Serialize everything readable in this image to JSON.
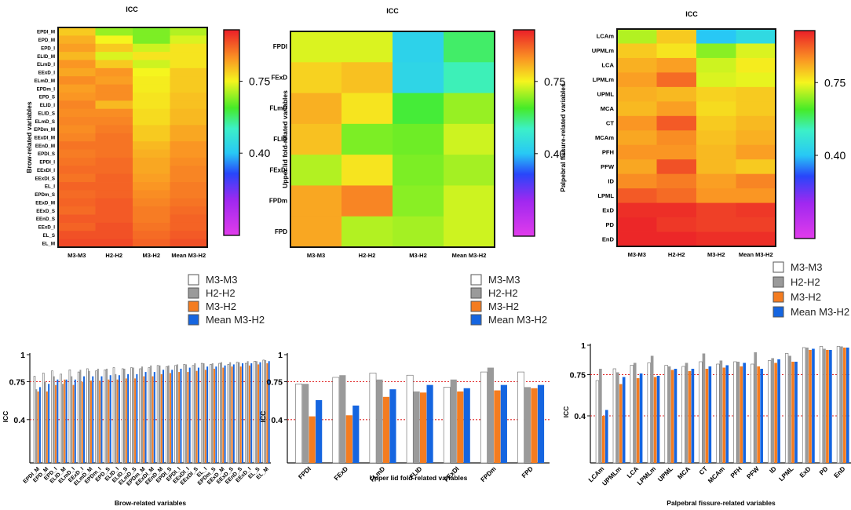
{
  "chart_data": [
    {
      "type": "heatmap",
      "title": "ICC",
      "ylabel": "Brow-related variables",
      "columns": [
        "M3-M3",
        "H2-H2",
        "M3-H2",
        "Mean M3-H2"
      ],
      "rows": [
        "EPDI_M",
        "EPD_M",
        "EPD_I",
        "ELID_M",
        "ELmD_I",
        "EExD_I",
        "ELmD_M",
        "EPDm_I",
        "EPD_S",
        "ELID_I",
        "ELID_S",
        "ELmD_S",
        "EPDm_M",
        "EExDI_M",
        "EEnD_M",
        "EPDI_S",
        "EPDI_I",
        "EExDI_I",
        "EExDI_S",
        "EL_I",
        "EPDm_S",
        "EExD_M",
        "EExD_S",
        "EEnD_S",
        "EExD_I",
        "EL_S",
        "EL_M"
      ],
      "values": [
        [
          0.8,
          0.68,
          0.66,
          0.7
        ],
        [
          0.83,
          0.75,
          0.66,
          0.73
        ],
        [
          0.85,
          0.8,
          0.72,
          0.77
        ],
        [
          0.82,
          0.73,
          0.77,
          0.77
        ],
        [
          0.86,
          0.8,
          0.72,
          0.77
        ],
        [
          0.84,
          0.86,
          0.75,
          0.8
        ],
        [
          0.87,
          0.85,
          0.76,
          0.8
        ],
        [
          0.85,
          0.87,
          0.76,
          0.8
        ],
        [
          0.86,
          0.87,
          0.77,
          0.81
        ],
        [
          0.88,
          0.82,
          0.77,
          0.81
        ],
        [
          0.87,
          0.87,
          0.78,
          0.82
        ],
        [
          0.88,
          0.88,
          0.78,
          0.82
        ],
        [
          0.87,
          0.89,
          0.8,
          0.84
        ],
        [
          0.88,
          0.9,
          0.8,
          0.84
        ],
        [
          0.9,
          0.9,
          0.82,
          0.86
        ],
        [
          0.89,
          0.9,
          0.83,
          0.86
        ],
        [
          0.9,
          0.91,
          0.84,
          0.87
        ],
        [
          0.91,
          0.91,
          0.84,
          0.88
        ],
        [
          0.9,
          0.92,
          0.85,
          0.88
        ],
        [
          0.92,
          0.92,
          0.86,
          0.89
        ],
        [
          0.91,
          0.92,
          0.87,
          0.89
        ],
        [
          0.92,
          0.93,
          0.88,
          0.9
        ],
        [
          0.91,
          0.93,
          0.89,
          0.91
        ],
        [
          0.93,
          0.93,
          0.89,
          0.92
        ],
        [
          0.92,
          0.94,
          0.9,
          0.92
        ],
        [
          0.94,
          0.94,
          0.91,
          0.93
        ],
        [
          0.95,
          0.95,
          0.92,
          0.94
        ]
      ],
      "colorbar": {
        "range": [
          0,
          1
        ],
        "ticks": [
          0.4,
          0.75
        ],
        "tick_labels": [
          "0.40",
          "0.75"
        ]
      }
    },
    {
      "type": "heatmap",
      "title": "ICC",
      "ylabel": "Upper lid fold-related variables",
      "columns": [
        "M3-M3",
        "H2-H2",
        "M3-H2",
        "Mean M3-H2"
      ],
      "rows": [
        "FPDI",
        "FExD",
        "FLmD",
        "FLID",
        "FExDI",
        "FPDm",
        "FPD"
      ],
      "values": [
        [
          0.73,
          0.73,
          0.43,
          0.58
        ],
        [
          0.79,
          0.81,
          0.44,
          0.53
        ],
        [
          0.83,
          0.77,
          0.61,
          0.68
        ],
        [
          0.81,
          0.66,
          0.65,
          0.72
        ],
        [
          0.7,
          0.77,
          0.66,
          0.69
        ],
        [
          0.84,
          0.88,
          0.67,
          0.72
        ],
        [
          0.84,
          0.7,
          0.69,
          0.72
        ]
      ],
      "colorbar": {
        "range": [
          0,
          1
        ],
        "ticks": [
          0.4,
          0.75
        ],
        "tick_labels": [
          "0.40",
          "0.75"
        ]
      }
    },
    {
      "type": "heatmap",
      "title": "ICC",
      "ylabel": "Palpebral fissure-related variables",
      "columns": [
        "M3-M3",
        "H2-H2",
        "M3-H2",
        "Mean M3-H2"
      ],
      "rows": [
        "LCAm",
        "UPMLm",
        "LCA",
        "LPMLm",
        "UPML",
        "MCA",
        "CT",
        "MCAm",
        "PFH",
        "PFW",
        "ID",
        "LPML",
        "ExD",
        "PD",
        "EnD"
      ],
      "values": [
        [
          0.7,
          0.8,
          0.4,
          0.45
        ],
        [
          0.8,
          0.77,
          0.67,
          0.73
        ],
        [
          0.83,
          0.85,
          0.72,
          0.76
        ],
        [
          0.85,
          0.91,
          0.73,
          0.74
        ],
        [
          0.83,
          0.82,
          0.79,
          0.8
        ],
        [
          0.82,
          0.85,
          0.78,
          0.8
        ],
        [
          0.86,
          0.93,
          0.8,
          0.82
        ],
        [
          0.84,
          0.87,
          0.81,
          0.83
        ],
        [
          0.86,
          0.86,
          0.82,
          0.85
        ],
        [
          0.84,
          0.94,
          0.82,
          0.8
        ],
        [
          0.87,
          0.89,
          0.85,
          0.88
        ],
        [
          0.93,
          0.91,
          0.86,
          0.86
        ],
        [
          0.98,
          0.98,
          0.96,
          0.97
        ],
        [
          0.99,
          0.97,
          0.96,
          0.96
        ],
        [
          0.99,
          0.99,
          0.98,
          0.98
        ]
      ],
      "colorbar": {
        "range": [
          0,
          1
        ],
        "ticks": [
          0.4,
          0.75
        ],
        "tick_labels": [
          "0.40",
          "0.75"
        ]
      }
    },
    {
      "type": "bar",
      "ylabel": "ICC",
      "xlabel": "Brow-related variables",
      "ylim": [
        0,
        1
      ],
      "yticks": [
        0.4,
        0.75,
        1
      ],
      "ytick_labels": [
        "0.4",
        "0.75",
        "1"
      ],
      "reference_lines": [
        0.4,
        0.75
      ],
      "categories": [
        "EPDI_M",
        "EPD_M",
        "EPD_I",
        "ELID_M",
        "ELmD_I",
        "EExD_I",
        "ELmD_M",
        "EPDm_I",
        "EPD_S",
        "ELID_I",
        "ELID_S",
        "ELmD_S",
        "EPDm_M",
        "EExDI_M",
        "EEnD_M",
        "EPDI_S",
        "EPDI_I",
        "EExDI_I",
        "EExDI_S",
        "EL_I",
        "EPDm_S",
        "EExD_M",
        "EExD_S",
        "EEnD_S",
        "EExD_I",
        "EL_S",
        "EL_M"
      ],
      "series": [
        {
          "name": "M3-M3",
          "values": [
            0.8,
            0.83,
            0.85,
            0.82,
            0.86,
            0.84,
            0.87,
            0.85,
            0.86,
            0.88,
            0.87,
            0.88,
            0.87,
            0.88,
            0.9,
            0.89,
            0.9,
            0.91,
            0.9,
            0.92,
            0.91,
            0.92,
            0.91,
            0.93,
            0.92,
            0.94,
            0.95
          ]
        },
        {
          "name": "H2-H2",
          "values": [
            0.68,
            0.75,
            0.8,
            0.73,
            0.8,
            0.86,
            0.85,
            0.87,
            0.87,
            0.82,
            0.87,
            0.88,
            0.89,
            0.9,
            0.9,
            0.9,
            0.91,
            0.91,
            0.92,
            0.92,
            0.92,
            0.93,
            0.93,
            0.93,
            0.94,
            0.94,
            0.95
          ]
        },
        {
          "name": "M3-H2",
          "values": [
            0.66,
            0.66,
            0.72,
            0.77,
            0.72,
            0.75,
            0.76,
            0.76,
            0.77,
            0.77,
            0.78,
            0.78,
            0.8,
            0.8,
            0.82,
            0.83,
            0.84,
            0.84,
            0.85,
            0.86,
            0.87,
            0.88,
            0.89,
            0.89,
            0.9,
            0.91,
            0.92
          ]
        },
        {
          "name": "Mean M3-H2",
          "values": [
            0.7,
            0.73,
            0.77,
            0.77,
            0.77,
            0.8,
            0.8,
            0.8,
            0.81,
            0.81,
            0.82,
            0.82,
            0.84,
            0.84,
            0.86,
            0.86,
            0.87,
            0.88,
            0.88,
            0.89,
            0.89,
            0.9,
            0.91,
            0.92,
            0.92,
            0.93,
            0.94
          ]
        }
      ]
    },
    {
      "type": "bar",
      "ylabel": "ICC",
      "xlabel": "Upper lid fold-related variables",
      "ylim": [
        0,
        1
      ],
      "yticks": [
        0.4,
        0.75,
        1
      ],
      "ytick_labels": [
        "0.4",
        "0.75",
        "1"
      ],
      "reference_lines": [
        0.4,
        0.75
      ],
      "categories": [
        "FPDI",
        "FExD",
        "FLmD",
        "FLID",
        "FExDI",
        "FPDm",
        "FPD"
      ],
      "series": [
        {
          "name": "M3-M3",
          "values": [
            0.73,
            0.79,
            0.83,
            0.81,
            0.7,
            0.84,
            0.84
          ]
        },
        {
          "name": "H2-H2",
          "values": [
            0.73,
            0.81,
            0.77,
            0.66,
            0.77,
            0.88,
            0.7
          ]
        },
        {
          "name": "M3-H2",
          "values": [
            0.43,
            0.44,
            0.61,
            0.65,
            0.66,
            0.67,
            0.69
          ]
        },
        {
          "name": "Mean M3-H2",
          "values": [
            0.58,
            0.53,
            0.68,
            0.72,
            0.69,
            0.72,
            0.72
          ]
        }
      ]
    },
    {
      "type": "bar",
      "ylabel": "ICC",
      "xlabel": "Palpebral fissure-related variables",
      "ylim": [
        0,
        1
      ],
      "yticks": [
        0.4,
        0.75,
        1
      ],
      "ytick_labels": [
        "0.4",
        "0.75",
        "1"
      ],
      "reference_lines": [
        0.4,
        0.75
      ],
      "categories": [
        "LCAm",
        "UPMLm",
        "LCA",
        "LPMLm",
        "UPML",
        "MCA",
        "CT",
        "MCAm",
        "PFH",
        "PFW",
        "ID",
        "LPML",
        "ExD",
        "PD",
        "EnD"
      ],
      "series": [
        {
          "name": "M3-M3",
          "values": [
            0.7,
            0.8,
            0.83,
            0.85,
            0.83,
            0.82,
            0.86,
            0.84,
            0.86,
            0.84,
            0.87,
            0.93,
            0.98,
            0.99,
            0.99
          ]
        },
        {
          "name": "H2-H2",
          "values": [
            0.8,
            0.77,
            0.85,
            0.91,
            0.82,
            0.85,
            0.93,
            0.87,
            0.86,
            0.94,
            0.89,
            0.91,
            0.98,
            0.97,
            0.99
          ]
        },
        {
          "name": "M3-H2",
          "values": [
            0.4,
            0.67,
            0.72,
            0.73,
            0.79,
            0.78,
            0.8,
            0.81,
            0.82,
            0.82,
            0.85,
            0.86,
            0.96,
            0.96,
            0.98
          ]
        },
        {
          "name": "Mean M3-H2",
          "values": [
            0.45,
            0.73,
            0.76,
            0.74,
            0.8,
            0.8,
            0.82,
            0.83,
            0.85,
            0.8,
            0.88,
            0.86,
            0.97,
            0.96,
            0.98
          ]
        }
      ]
    }
  ],
  "legend": [
    {
      "label": "M3-M3",
      "color": "#ffffff"
    },
    {
      "label": "H2-H2",
      "color": "#9a9a9a"
    },
    {
      "label": "M3-H2",
      "color": "#f47c20"
    },
    {
      "label": "Mean M3-H2",
      "color": "#1565e0"
    }
  ],
  "reference_line_color": "#e02020"
}
